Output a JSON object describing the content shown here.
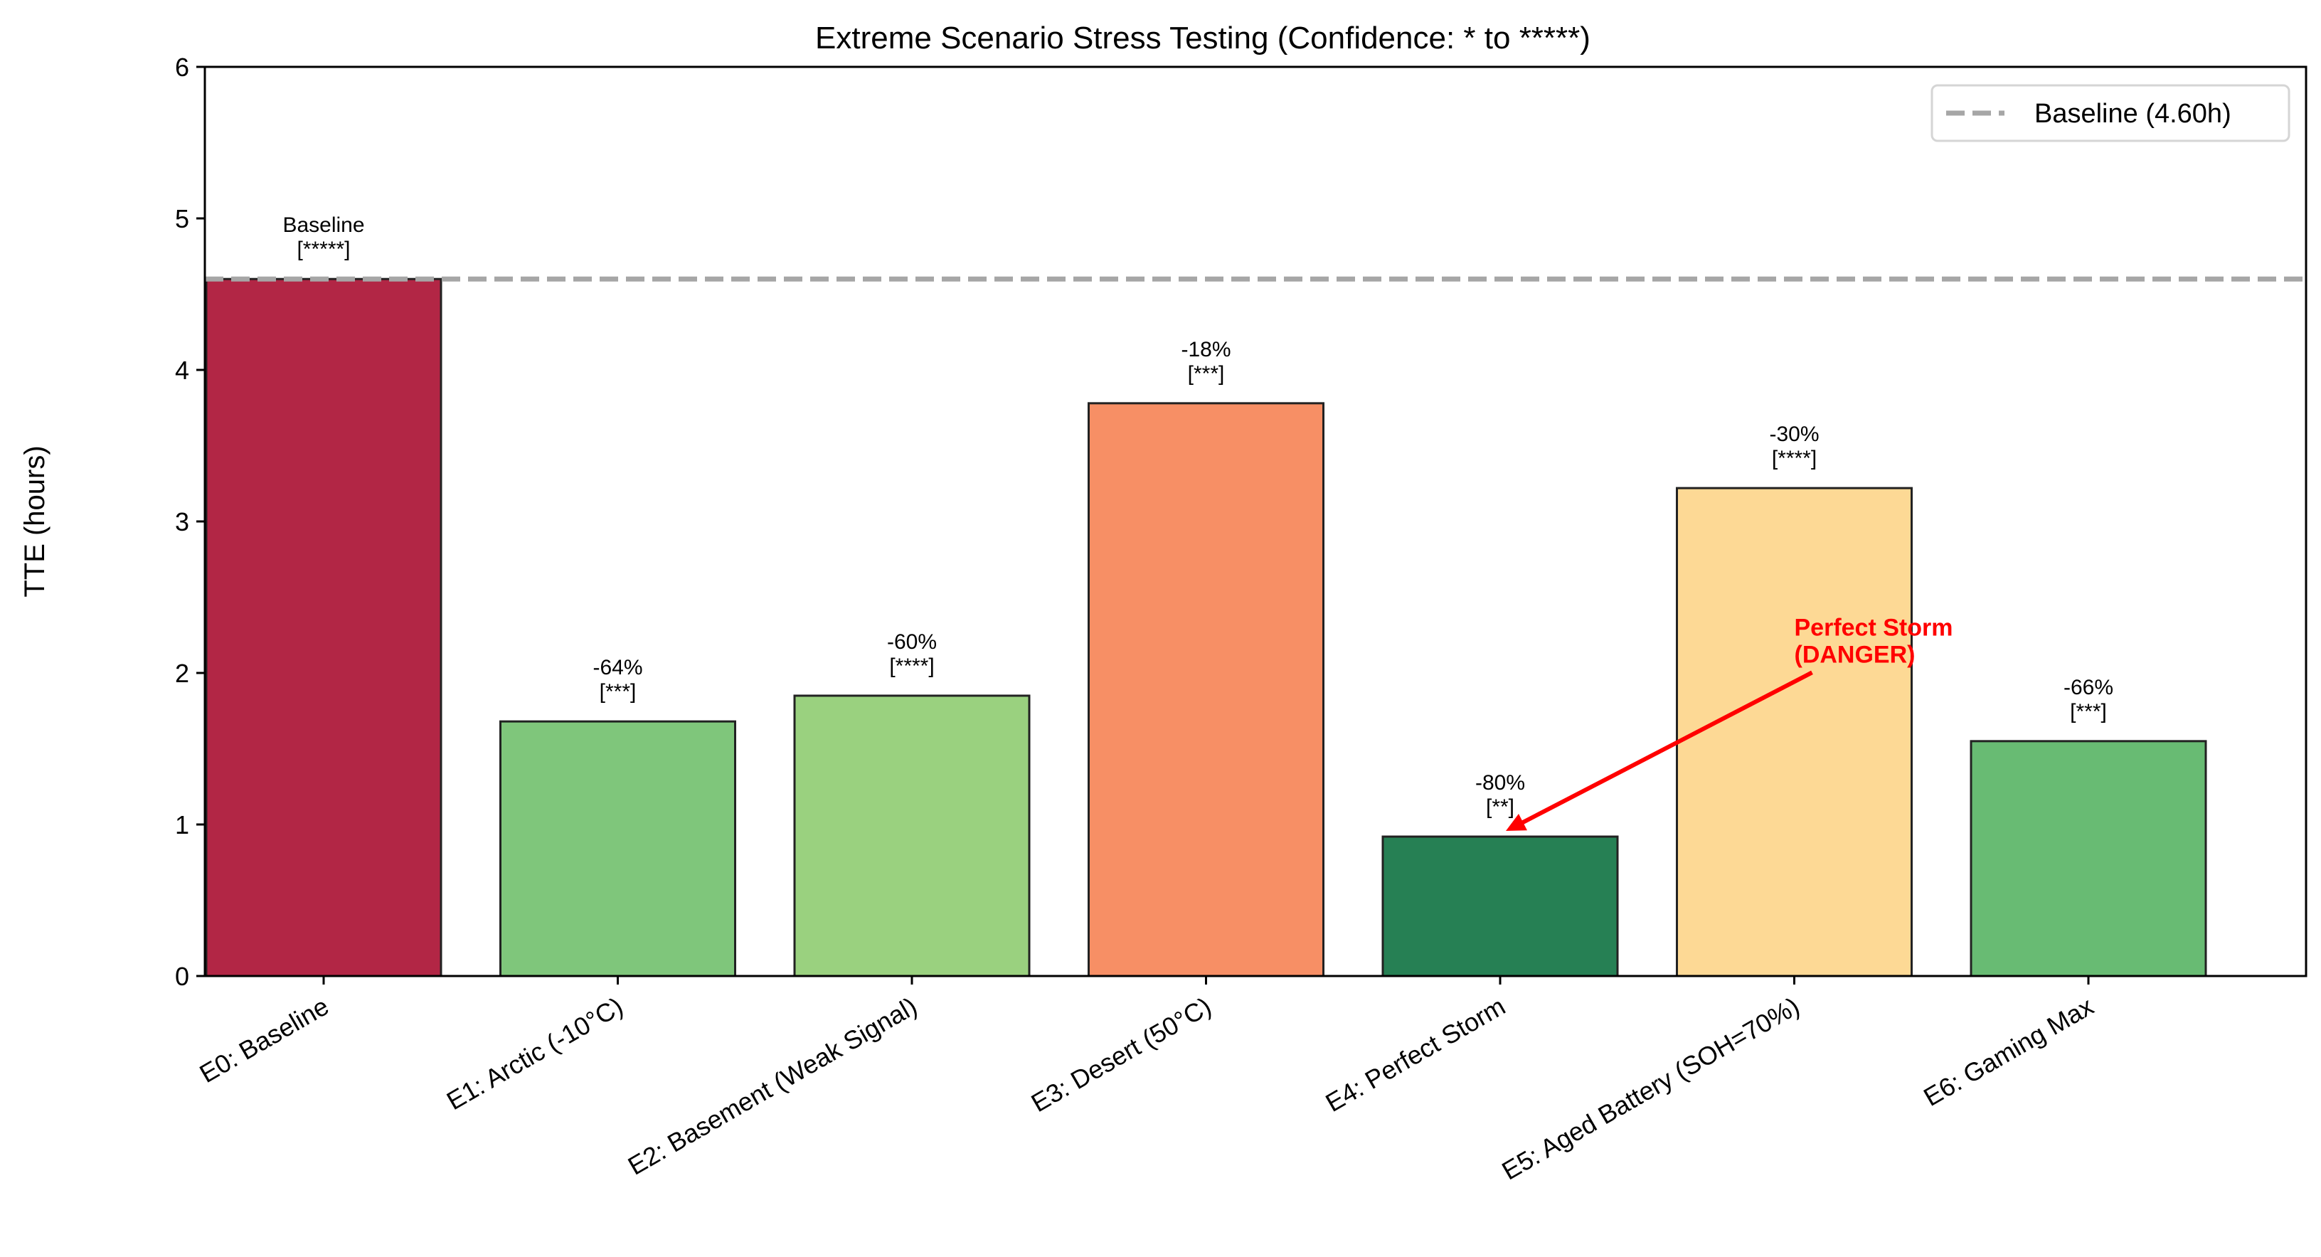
{
  "chart_data": {
    "type": "bar",
    "title": "Extreme Scenario Stress Testing (Confidence: * to *****)",
    "xlabel": "",
    "ylabel": "TTE (hours)",
    "ylim": [
      0,
      6
    ],
    "yticks": [
      "0",
      "1",
      "2",
      "3",
      "4",
      "5",
      "6"
    ],
    "grid": false,
    "categories": [
      "E0: Baseline",
      "E1: Arctic (-10°C)",
      "E2: Basement (Weak Signal)",
      "E3: Desert (50°C)",
      "E4: Perfect Storm",
      "E5: Aged Battery (SOH=70%)",
      "E6: Gaming Max"
    ],
    "values": [
      4.6,
      1.68,
      1.85,
      3.78,
      0.92,
      3.22,
      1.55
    ],
    "colors": [
      "#b22645",
      "#7fc67b",
      "#9ad17f",
      "#f78f65",
      "#268054",
      "#fdd995",
      "#68bb73"
    ],
    "bar_labels": [
      [
        "Baseline",
        "[*****]"
      ],
      [
        "-64%",
        "[***]"
      ],
      [
        "-60%",
        "[****]"
      ],
      [
        "-18%",
        "[***]"
      ],
      [
        "-80%",
        "[**]"
      ],
      [
        "-30%",
        "[****]"
      ],
      [
        "-66%",
        "[***]"
      ]
    ],
    "reference_line": {
      "value": 4.6,
      "style": "dashed",
      "color": "#a6a6a6",
      "label": "Baseline (4.60h)"
    },
    "legend": {
      "placement": "top-right",
      "entries": [
        "Baseline (4.60h)"
      ]
    },
    "annotation": {
      "lines": [
        "Perfect Storm",
        "(DANGER)"
      ],
      "color": "#ff0000",
      "target_category": "E4: Perfect Storm",
      "target_value": 0.92,
      "text_x_category_index": 5.0,
      "text_y_value": 2.05
    }
  }
}
